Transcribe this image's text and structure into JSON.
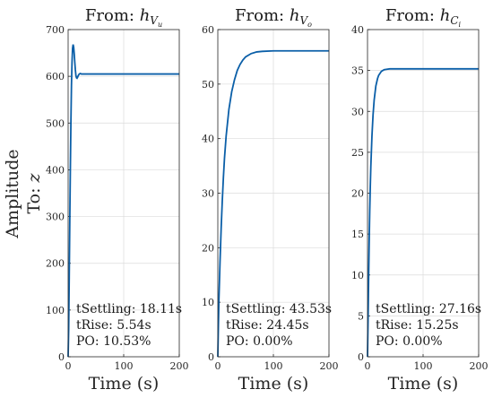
{
  "figure": {
    "ylabel_line1": "Amplitude",
    "ylabel_line2_prefix": "To: ",
    "ylabel_line2_var": "z"
  },
  "chart_data": [
    {
      "type": "line",
      "title_prefix": "From: ",
      "title_var": "h",
      "title_sub": "V",
      "title_subsub": "u",
      "xlabel": "Time (s)",
      "xlim": [
        0,
        200
      ],
      "ylim": [
        0,
        700
      ],
      "xticks": [
        0,
        100,
        200
      ],
      "yticks": [
        0,
        100,
        200,
        300,
        400,
        500,
        600,
        700
      ],
      "grid": true,
      "series": [
        {
          "x": [
            0,
            1,
            2,
            3,
            4,
            5,
            6,
            7,
            8,
            9,
            10,
            11,
            12,
            13,
            14,
            15,
            16,
            17,
            18,
            19,
            20,
            22,
            24,
            26,
            28,
            30,
            35,
            40,
            50,
            60,
            80,
            100,
            150,
            200
          ],
          "y": [
            0,
            60,
            170,
            290,
            400,
            500,
            580,
            630,
            660,
            668,
            662,
            648,
            630,
            614,
            602,
            597,
            596,
            598,
            601,
            603,
            605,
            606,
            605,
            605,
            605,
            605,
            605,
            605,
            605,
            605,
            605,
            605,
            605,
            605
          ]
        }
      ],
      "annotations": [
        "tSettling: 18.11s",
        "tRise: 5.54s",
        "PO: 10.53%"
      ]
    },
    {
      "type": "line",
      "title_prefix": "From: ",
      "title_var": "h",
      "title_sub": "V",
      "title_subsub": "o",
      "xlabel": "Time (s)",
      "xlim": [
        0,
        200
      ],
      "ylim": [
        0,
        60
      ],
      "xticks": [
        0,
        100,
        200
      ],
      "yticks": [
        0,
        10,
        20,
        30,
        40,
        50,
        60
      ],
      "grid": true,
      "series": [
        {
          "x": [
            0,
            1,
            2,
            4,
            6,
            8,
            10,
            12,
            15,
            20,
            25,
            30,
            35,
            40,
            45,
            50,
            60,
            70,
            80,
            100,
            150,
            200
          ],
          "y": [
            0,
            5.5,
            10.5,
            17.5,
            23.5,
            28.5,
            32.8,
            36.4,
            40.5,
            45.4,
            48.6,
            50.8,
            52.5,
            53.6,
            54.4,
            55.0,
            55.6,
            55.9,
            56.0,
            56.1,
            56.1,
            56.1
          ]
        }
      ],
      "annotations": [
        "tSettling: 43.53s",
        "tRise: 24.45s",
        "PO: 0.00%"
      ]
    },
    {
      "type": "line",
      "title_prefix": "From: ",
      "title_var": "h",
      "title_sub": "C",
      "title_subsub": "i",
      "xlabel": "Time (s)",
      "xlim": [
        0,
        200
      ],
      "ylim": [
        0,
        40
      ],
      "xticks": [
        0,
        100,
        200
      ],
      "yticks": [
        0,
        5,
        10,
        15,
        20,
        25,
        30,
        35,
        40
      ],
      "grid": true,
      "series": [
        {
          "x": [
            0,
            1,
            2,
            3,
            4,
            5,
            6,
            8,
            10,
            12,
            15,
            18,
            20,
            25,
            30,
            35,
            40,
            50,
            60,
            80,
            100,
            150,
            200
          ],
          "y": [
            0,
            4.5,
            9.5,
            14.0,
            17.8,
            20.8,
            23.3,
            27.0,
            29.6,
            31.4,
            33.1,
            34.0,
            34.4,
            34.9,
            35.1,
            35.15,
            35.2,
            35.2,
            35.2,
            35.2,
            35.2,
            35.2,
            35.2
          ]
        }
      ],
      "annotations": [
        "tSettling: 27.16s",
        "tRise: 15.25s",
        "PO: 0.00%"
      ]
    }
  ]
}
